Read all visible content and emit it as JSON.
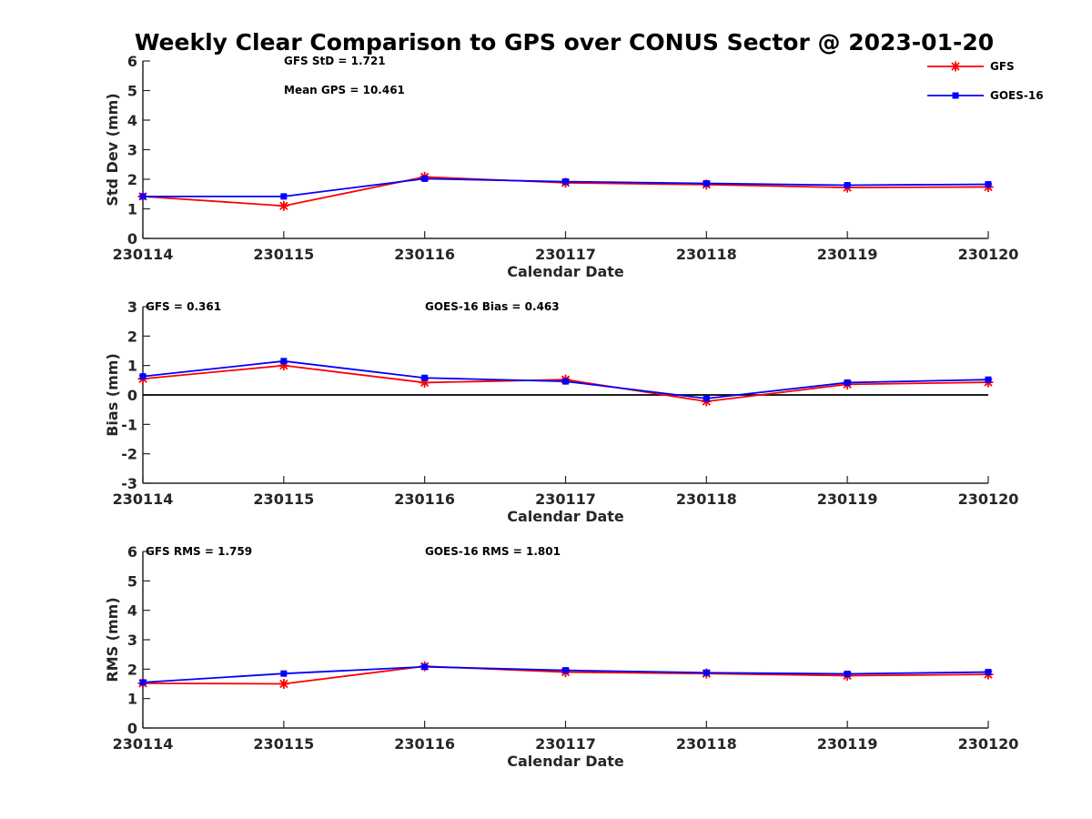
{
  "figure": {
    "title": "Weekly Clear Comparison to GPS over CONUS Sector @ 2023-01-20",
    "legend": {
      "placement": "top-right",
      "entries": [
        {
          "label": "GFS",
          "color": "#ff0000",
          "marker": "asterisk"
        },
        {
          "label": "GOES-16",
          "color": "#0000ff",
          "marker": "square"
        }
      ]
    }
  },
  "chart_data": [
    {
      "type": "line",
      "title": "Weekly Clear Comparison to GPS over CONUS Sector @ 2023-01-20",
      "xlabel": "Calendar Date",
      "ylabel": "Std Dev (mm)",
      "categories": [
        "230114",
        "230115",
        "230116",
        "230117",
        "230118",
        "230119",
        "230120"
      ],
      "ylim": [
        0,
        6
      ],
      "yticks": [
        "0",
        "1",
        "2",
        "3",
        "4",
        "5",
        "6"
      ],
      "zero_line": false,
      "grid": false,
      "legend": "top-right",
      "series": [
        {
          "name": "GFS",
          "color": "#ff0000",
          "marker": "asterisk",
          "values": [
            1.42,
            1.1,
            2.08,
            1.88,
            1.82,
            1.72,
            1.74
          ]
        },
        {
          "name": "GOES-16",
          "color": "#0000ff",
          "marker": "square",
          "values": [
            1.42,
            1.42,
            2.02,
            1.92,
            1.86,
            1.8,
            1.83
          ]
        }
      ],
      "annotations": [
        {
          "text": "GFS StD = 1.721",
          "row": 1,
          "col": 1
        },
        {
          "text": "Mean GPS = 10.461",
          "row": 2,
          "col": 1
        }
      ]
    },
    {
      "type": "line",
      "title": "",
      "xlabel": "Calendar Date",
      "ylabel": "Bias (mm)",
      "categories": [
        "230114",
        "230115",
        "230116",
        "230117",
        "230118",
        "230119",
        "230120"
      ],
      "ylim": [
        -3,
        3
      ],
      "yticks": [
        "-3",
        "-2",
        "-1",
        "0",
        "1",
        "2",
        "3"
      ],
      "zero_line": true,
      "grid": false,
      "series": [
        {
          "name": "GFS",
          "color": "#ff0000",
          "marker": "asterisk",
          "values": [
            0.55,
            1.0,
            0.42,
            0.52,
            -0.22,
            0.36,
            0.43
          ]
        },
        {
          "name": "GOES-16",
          "color": "#0000ff",
          "marker": "square",
          "values": [
            0.63,
            1.15,
            0.58,
            0.46,
            -0.12,
            0.42,
            0.52
          ]
        }
      ],
      "annotations": [
        {
          "text": "GFS = 0.361",
          "row": 1,
          "col": 0
        },
        {
          "text": "GOES-16 Bias  = 0.463",
          "row": 1,
          "col": 2
        }
      ]
    },
    {
      "type": "line",
      "title": "",
      "xlabel": "Calendar Date",
      "ylabel": "RMS (mm)",
      "categories": [
        "230114",
        "230115",
        "230116",
        "230117",
        "230118",
        "230119",
        "230120"
      ],
      "ylim": [
        0,
        6
      ],
      "yticks": [
        "0",
        "1",
        "2",
        "3",
        "4",
        "5",
        "6"
      ],
      "zero_line": false,
      "grid": false,
      "series": [
        {
          "name": "GFS",
          "color": "#ff0000",
          "marker": "asterisk",
          "values": [
            1.52,
            1.5,
            2.1,
            1.9,
            1.85,
            1.78,
            1.82
          ]
        },
        {
          "name": "GOES-16",
          "color": "#0000ff",
          "marker": "square",
          "values": [
            1.55,
            1.85,
            2.08,
            1.96,
            1.88,
            1.84,
            1.9
          ]
        }
      ],
      "annotations": [
        {
          "text": "GFS RMS = 1.759",
          "row": 1,
          "col": 0
        },
        {
          "text": "GOES-16 RMS = 1.801",
          "row": 1,
          "col": 2
        }
      ]
    }
  ]
}
